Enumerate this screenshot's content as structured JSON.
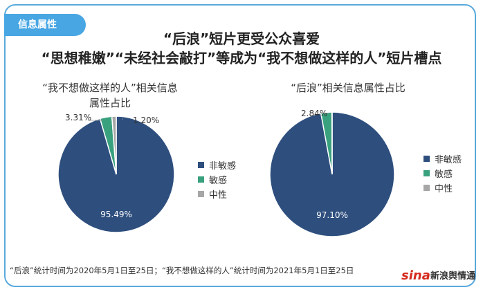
{
  "tag": "信息属性",
  "title_line1": "“后浪”短片更受公众喜爱",
  "title_line2": "“思想稚嫩”“未经社会敲打”等成为“我不想做这样的人”短片槽点",
  "colors": {
    "non_sensitive": "#2e4f7e",
    "sensitive": "#3aa17e",
    "neutral": "#a6a6a6"
  },
  "chart_data": [
    {
      "type": "pie",
      "title_line1": "“我不想做这样的人”相关信息",
      "title_line2": "属性占比",
      "categories": [
        "非敏感",
        "敏感",
        "中性"
      ],
      "values": [
        95.49,
        3.31,
        1.2
      ],
      "labels": [
        "95.49%",
        "3.31%",
        "1.20%"
      ]
    },
    {
      "type": "pie",
      "title_line1": "“后浪”相关信息属性占比",
      "title_line2": "",
      "categories": [
        "非敏感",
        "敏感",
        "中性"
      ],
      "values": [
        97.1,
        2.84,
        0.06
      ],
      "labels": [
        "97.10%",
        "2.84%",
        ""
      ]
    }
  ],
  "legend": [
    "非敏感",
    "敏感",
    "中性"
  ],
  "footer": "“后浪”统计时间为2020年5月1日至25日；“我不想做这样的人”统计时间为2021年5月1日至25日",
  "logo": {
    "brand": "sina",
    "text": "新浪舆情通"
  }
}
